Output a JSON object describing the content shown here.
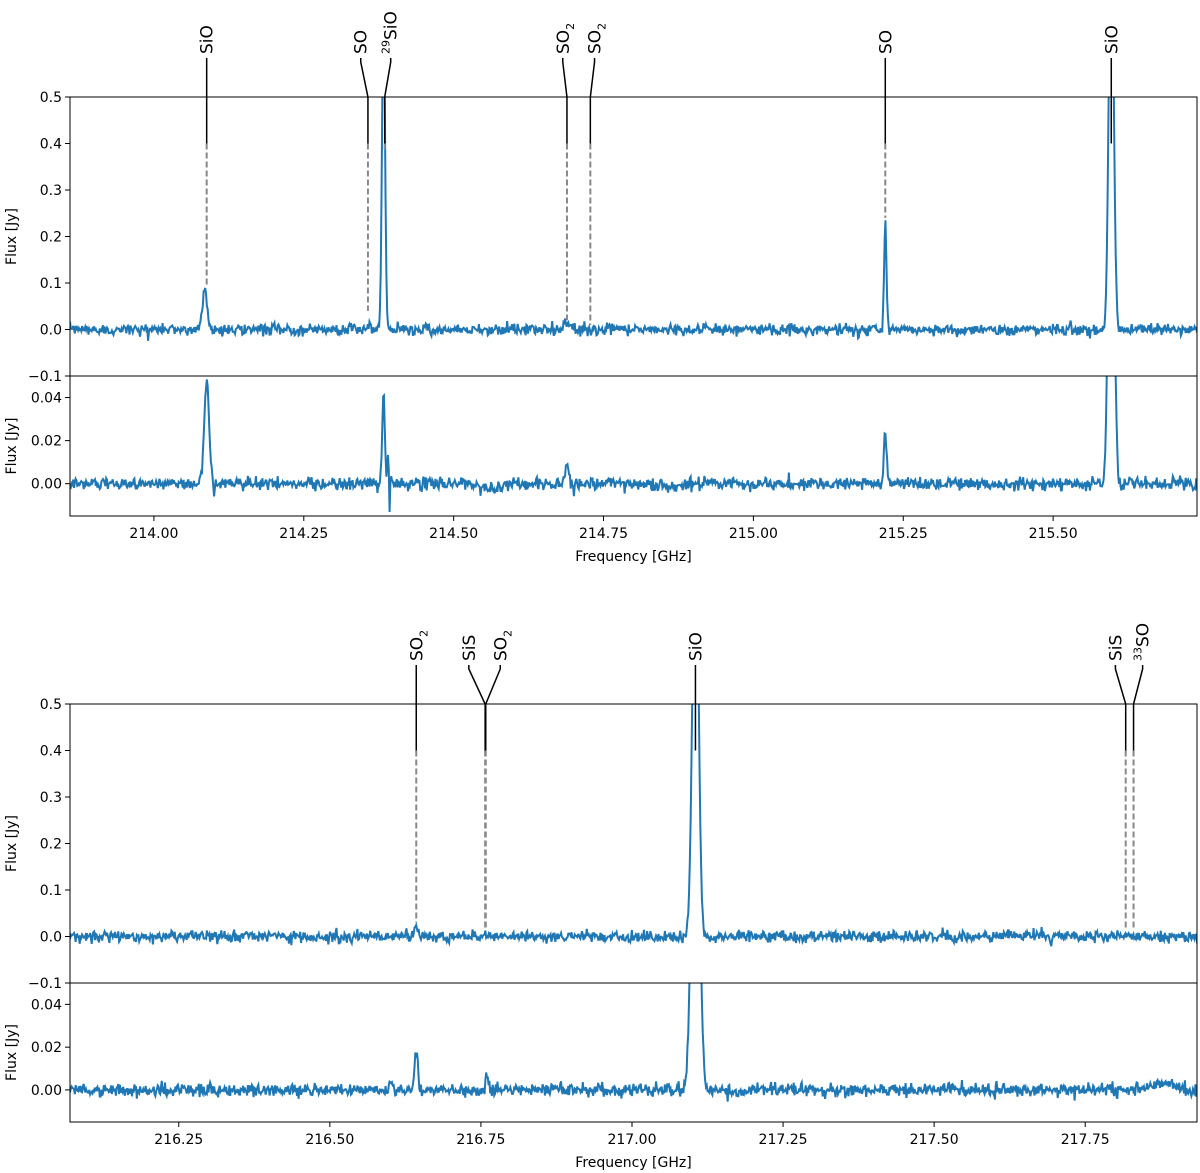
{
  "chart_data": [
    {
      "type": "line",
      "panel": "top",
      "x_range": [
        213.86,
        215.74
      ],
      "xticks": [
        "214.00",
        "214.25",
        "214.50",
        "214.75",
        "215.00",
        "215.25",
        "215.50"
      ],
      "xtick_values": [
        214.0,
        214.25,
        214.5,
        214.75,
        215.0,
        215.25,
        215.5
      ],
      "xlabel": "Frequency [GHz]",
      "upper": {
        "ylabel": "Flux [Jy]",
        "ylim": [
          -0.1,
          0.5
        ],
        "yticks": [
          "−0.1",
          "0.0",
          "0.1",
          "0.2",
          "0.3",
          "0.4",
          "0.5"
        ],
        "ytick_values": [
          -0.1,
          0.0,
          0.1,
          0.2,
          0.3,
          0.4,
          0.5
        ]
      },
      "lower": {
        "ylabel": "Flux [Jy]",
        "ylim": [
          -0.015,
          0.05
        ],
        "yticks": [
          "0.00",
          "0.02",
          "0.04"
        ],
        "ytick_values": [
          0.0,
          0.02,
          0.04
        ]
      },
      "series_color": "#1f77b4",
      "noise_upper": 0.006,
      "noise_lower": 0.0015,
      "peaks": [
        {
          "x": 214.085,
          "amp": 0.085,
          "width": 0.004
        },
        {
          "x": 214.36,
          "amp": 0.006,
          "width": 0.003
        },
        {
          "x": 214.383,
          "amp": 0.7,
          "width": 0.0025
        },
        {
          "x": 214.689,
          "amp": 0.018,
          "width": 0.005
        },
        {
          "x": 215.22,
          "amp": 0.23,
          "width": 0.002
        },
        {
          "x": 215.597,
          "amp": 0.9,
          "width": 0.004
        }
      ],
      "lower_peaks": [
        {
          "x": 214.088,
          "amp": 0.048,
          "width": 0.004
        },
        {
          "x": 214.383,
          "amp": 0.045,
          "width": 0.002
        },
        {
          "x": 214.392,
          "amp": 0.022,
          "width": 0.0018
        },
        {
          "x": 214.393,
          "amp": -0.03,
          "width": 0.001
        },
        {
          "x": 214.56,
          "amp": -0.002,
          "width": 0.02
        },
        {
          "x": 214.689,
          "amp": 0.009,
          "width": 0.003
        },
        {
          "x": 214.85,
          "amp": -0.001,
          "width": 0.03
        },
        {
          "x": 215.22,
          "amp": 0.022,
          "width": 0.0025
        },
        {
          "x": 215.597,
          "amp": 0.2,
          "width": 0.0045
        }
      ],
      "line_ids": [
        {
          "label": "SiO",
          "sup": "",
          "x": 214.088,
          "y_from": 0.095,
          "y_to": 0.4,
          "label_x": 214.088
        },
        {
          "label": "SO",
          "sup": "",
          "x": 214.357,
          "y_from": 0.04,
          "y_to": 0.4,
          "label_x": 214.345
        },
        {
          "label": "SiO",
          "sup": "29",
          "x": 214.385,
          "y_from": 0.38,
          "y_to": 0.4,
          "label_x": 214.395
        },
        {
          "label": "SO",
          "sup": "",
          "sub": "2",
          "x": 214.689,
          "y_from": 0.02,
          "y_to": 0.4,
          "label_x": 214.682
        },
        {
          "label": "SO",
          "sup": "",
          "sub": "2",
          "x": 214.728,
          "y_from": 0.01,
          "y_to": 0.4,
          "label_x": 214.735
        },
        {
          "label": "SO",
          "sup": "",
          "x": 215.22,
          "y_from": 0.24,
          "y_to": 0.4,
          "label_x": 215.22
        },
        {
          "label": "SiO",
          "sup": "",
          "x": 215.597,
          "y_from": 0.4,
          "y_to": 0.4,
          "label_x": 215.597
        }
      ]
    },
    {
      "type": "line",
      "panel": "bottom",
      "x_range": [
        216.07,
        217.935
      ],
      "xticks": [
        "216.25",
        "216.50",
        "216.75",
        "217.00",
        "217.25",
        "217.50",
        "217.75"
      ],
      "xtick_values": [
        216.25,
        216.5,
        216.75,
        217.0,
        217.25,
        217.5,
        217.75
      ],
      "xlabel": "Frequency [GHz]",
      "upper": {
        "ylabel": "Flux [Jy]",
        "ylim": [
          -0.1,
          0.5
        ],
        "yticks": [
          "−0.1",
          "0.0",
          "0.1",
          "0.2",
          "0.3",
          "0.4",
          "0.5"
        ],
        "ytick_values": [
          -0.1,
          0.0,
          0.1,
          0.2,
          0.3,
          0.4,
          0.5
        ]
      },
      "lower": {
        "ylabel": "Flux [Jy]",
        "ylim": [
          -0.015,
          0.05
        ],
        "yticks": [
          "0.00",
          "0.02",
          "0.04"
        ],
        "ytick_values": [
          0.0,
          0.02,
          0.04
        ]
      },
      "series_color": "#1f77b4",
      "noise_upper": 0.006,
      "noise_lower": 0.0015,
      "peaks": [
        {
          "x": 216.643,
          "amp": 0.025,
          "width": 0.003
        },
        {
          "x": 216.758,
          "amp": 0.008,
          "width": 0.003
        },
        {
          "x": 217.105,
          "amp": 0.9,
          "width": 0.005
        }
      ],
      "lower_peaks": [
        {
          "x": 216.6,
          "amp": 0.004,
          "width": 0.002
        },
        {
          "x": 216.643,
          "amp": 0.018,
          "width": 0.003
        },
        {
          "x": 216.76,
          "amp": 0.007,
          "width": 0.002
        },
        {
          "x": 217.105,
          "amp": 0.2,
          "width": 0.006
        },
        {
          "x": 217.11,
          "amp": -0.08,
          "width": 0.0015
        },
        {
          "x": 217.88,
          "amp": 0.003,
          "width": 0.02
        }
      ],
      "line_ids": [
        {
          "label": "SO",
          "sup": "",
          "sub": "2",
          "x": 216.643,
          "y_from": 0.03,
          "y_to": 0.4,
          "label_x": 216.643
        },
        {
          "label": "SiS",
          "sup": "",
          "x": 216.757,
          "y_from": 0.015,
          "y_to": 0.4,
          "label_x": 216.73
        },
        {
          "label": "SO",
          "sup": "",
          "sub": "2",
          "x": 216.758,
          "y_from": 0.015,
          "y_to": 0.4,
          "label_x": 216.782
        },
        {
          "label": "SiO",
          "sup": "",
          "x": 217.105,
          "y_from": 0.4,
          "y_to": 0.4,
          "label_x": 217.105
        },
        {
          "label": "SiS",
          "sup": "",
          "x": 217.817,
          "y_from": 0.015,
          "y_to": 0.4,
          "label_x": 217.8
        },
        {
          "label": "SO",
          "sup": "33",
          "x": 217.83,
          "y_from": 0.015,
          "y_to": 0.4,
          "label_x": 217.845
        }
      ]
    }
  ]
}
